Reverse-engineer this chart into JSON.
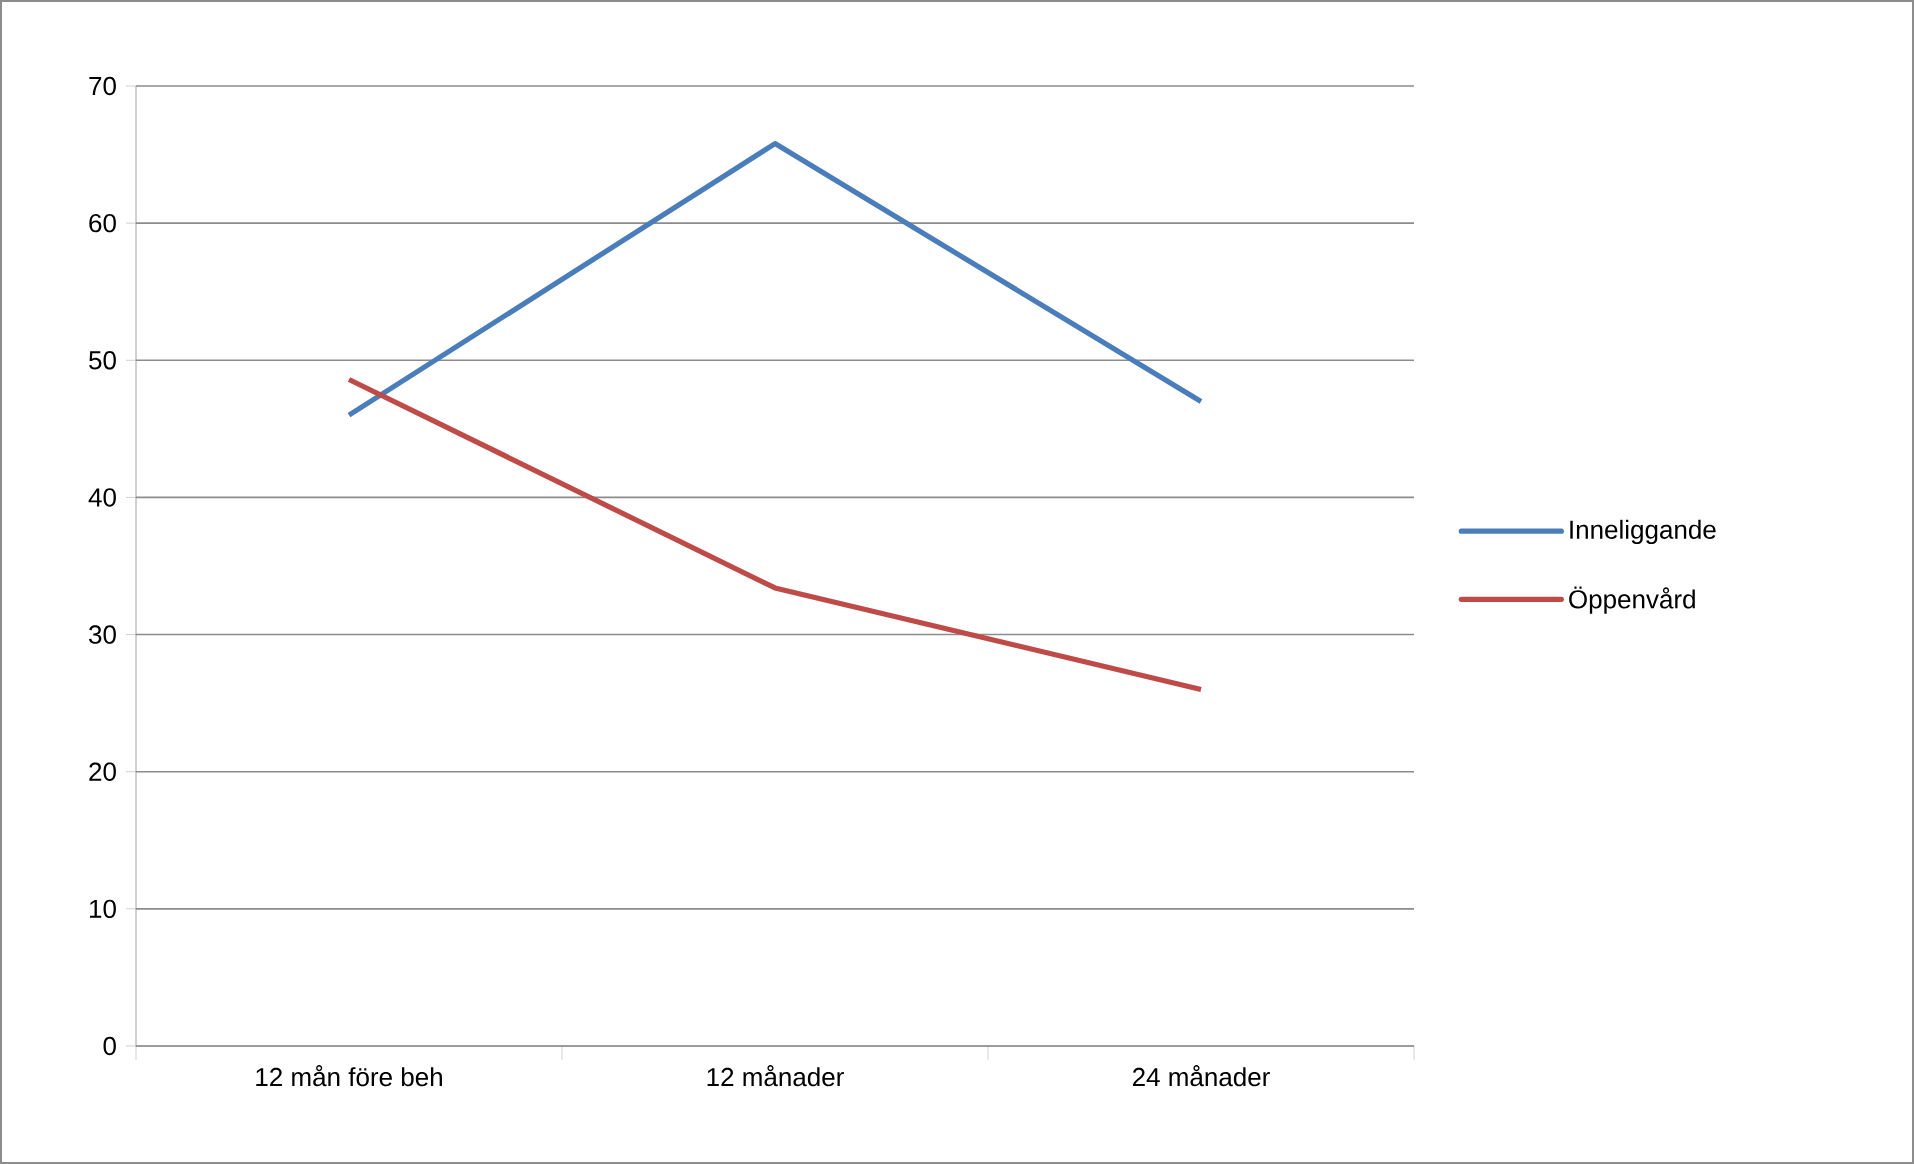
{
  "chart_data": {
    "type": "line",
    "categories": [
      "12 mån före beh",
      "12 månader",
      "24 månader"
    ],
    "series": [
      {
        "name": "Inneliggande",
        "color": "#4a7ebb",
        "values": [
          46,
          65.8,
          47
        ]
      },
      {
        "name": "Öppenvård",
        "color": "#be4b48",
        "values": [
          48.6,
          33.4,
          26
        ]
      }
    ],
    "ylim": [
      0,
      70
    ],
    "yticks": [
      0,
      10,
      20,
      30,
      40,
      50,
      60,
      70
    ],
    "grid": "y",
    "legend": "right",
    "marker": "none",
    "line_style": "solid"
  }
}
